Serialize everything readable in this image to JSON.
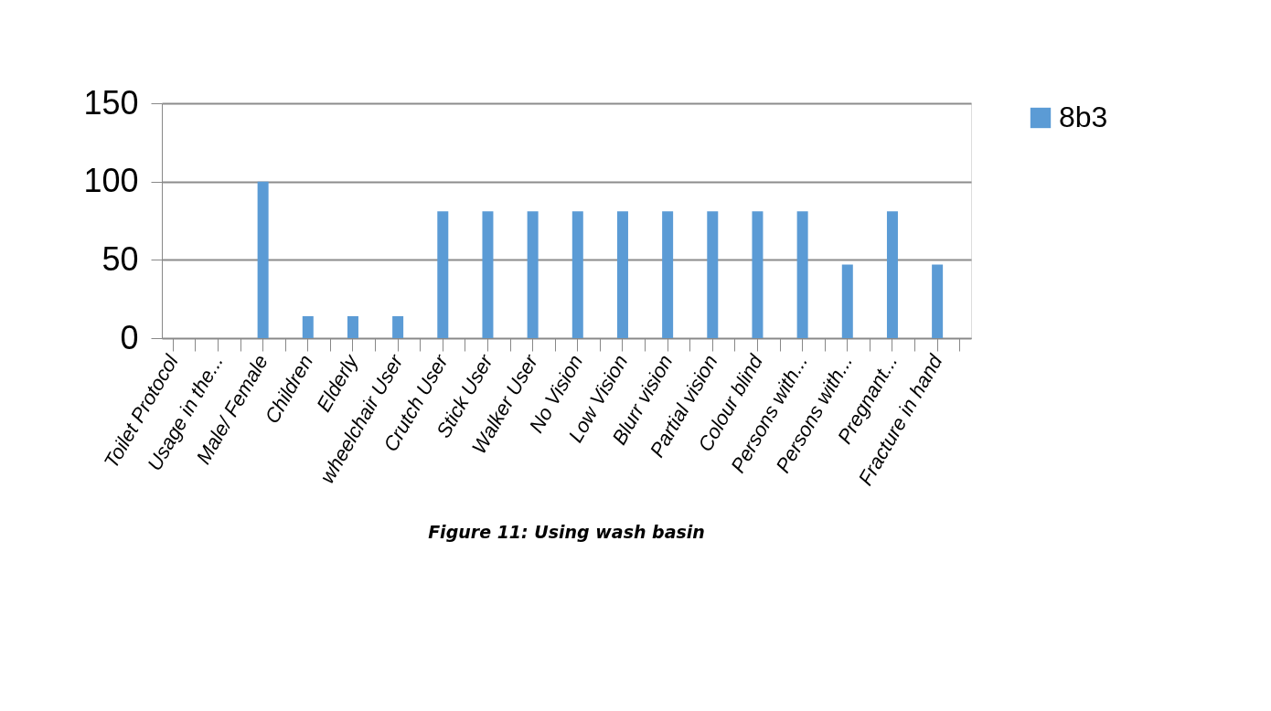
{
  "chart_data": {
    "type": "bar",
    "title": "Figure 11: Using wash basin",
    "categories": [
      "Toilet Protocol",
      null,
      "Usage in the...",
      null,
      "Male/ Female",
      null,
      "Children",
      null,
      "Elderly",
      null,
      "wheelchair User",
      null,
      "Crutch User",
      null,
      "Stick User",
      null,
      "Walker User",
      null,
      "No Vision",
      null,
      "Low Vision",
      null,
      "Blurr vision",
      null,
      "Partial vision",
      null,
      "Colour blind",
      null,
      "Persons with...",
      null,
      "Persons with...",
      null,
      "Pregnant...",
      null,
      "Fracture in hand",
      null
    ],
    "series": [
      {
        "name": "8b3",
        "color": "#5b9bd5",
        "values": [
          0,
          null,
          0,
          null,
          100,
          null,
          14,
          null,
          14,
          null,
          14,
          null,
          81,
          null,
          81,
          null,
          81,
          null,
          81,
          null,
          81,
          null,
          81,
          null,
          81,
          null,
          81,
          null,
          81,
          null,
          47,
          null,
          81,
          null,
          47,
          null
        ]
      }
    ],
    "ylim": [
      0,
      150
    ],
    "yticks": [
      0,
      50,
      100,
      150
    ],
    "grid": "y",
    "legend": "right"
  }
}
